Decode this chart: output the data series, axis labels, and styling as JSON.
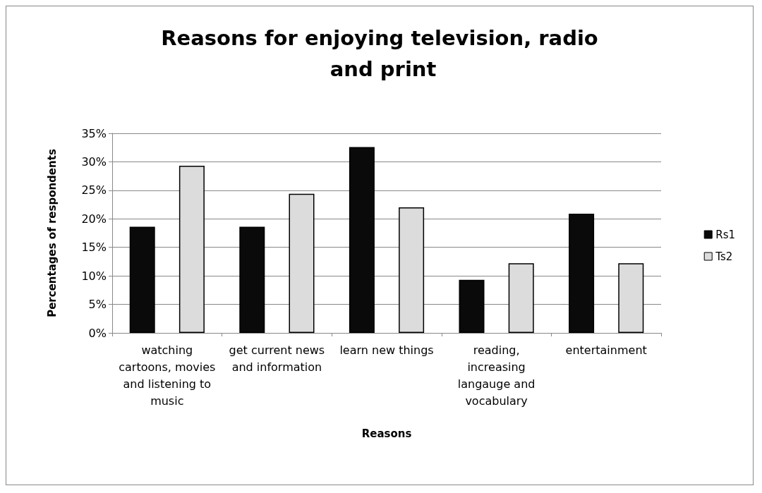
{
  "chart_data": {
    "type": "bar",
    "title": "Reasons for enjoying television, radio and print",
    "xlabel": "Reasons",
    "ylabel": "Percentages of respondents",
    "categories": [
      "watching cartoons, movies and listening to music",
      "get current news and information",
      "learn new things",
      "reading, increasing langauge and vocabulary",
      "entertainment"
    ],
    "series": [
      {
        "name": "Rs1",
        "color": "#0a0a0a",
        "values": [
          18.6,
          18.6,
          32.6,
          9.3,
          20.9
        ]
      },
      {
        "name": "Ts2",
        "color": "#dcdcdc",
        "values": [
          29.3,
          24.4,
          22.0,
          12.2,
          12.2
        ]
      }
    ],
    "ylim": [
      0,
      35
    ],
    "yticks": [
      {
        "value": 0,
        "label": "0%"
      },
      {
        "value": 5,
        "label": "5%"
      },
      {
        "value": 10,
        "label": "10%"
      },
      {
        "value": 15,
        "label": "15%"
      },
      {
        "value": 20,
        "label": "20%"
      },
      {
        "value": 25,
        "label": "25%"
      },
      {
        "value": 30,
        "label": "30%"
      },
      {
        "value": 35,
        "label": "35%"
      }
    ],
    "grid": "y",
    "legend": "right"
  }
}
